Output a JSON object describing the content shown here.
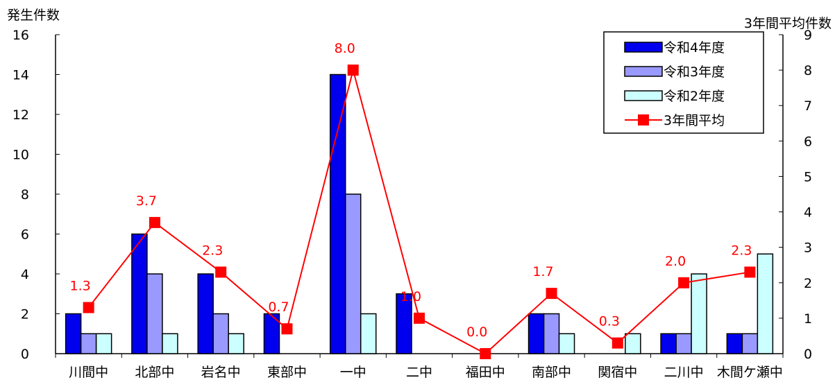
{
  "chart_data": {
    "type": "bar",
    "categories": [
      "川間中",
      "北部中",
      "岩名中",
      "東部中",
      "一中",
      "二中",
      "福田中",
      "南部中",
      "関宿中",
      "二川中",
      "木間ケ瀬中"
    ],
    "series": [
      {
        "name": "令和4年度",
        "type": "bar",
        "axis": "left",
        "color": "#0000ee",
        "values": [
          2,
          6,
          4,
          2,
          14,
          3,
          0,
          2,
          0,
          1,
          1
        ]
      },
      {
        "name": "令和3年度",
        "type": "bar",
        "axis": "left",
        "color": "#9999ff",
        "values": [
          1,
          4,
          2,
          0,
          8,
          0,
          0,
          2,
          0,
          1,
          1
        ]
      },
      {
        "name": "令和2年度",
        "type": "bar",
        "axis": "left",
        "color": "#ccffff",
        "values": [
          1,
          1,
          1,
          0,
          2,
          0,
          0,
          1,
          1,
          4,
          5
        ]
      },
      {
        "name": "3年間平均",
        "type": "line",
        "axis": "right",
        "color": "#ff0000",
        "values": [
          1.3,
          3.7,
          2.3,
          0.7,
          8.0,
          1.0,
          0.0,
          1.7,
          0.3,
          2.0,
          2.3
        ],
        "labels": [
          "1.3",
          "3.7",
          "2.3",
          "0.7",
          "8.0",
          "1.0",
          "0.0",
          "1.7",
          "0.3",
          "2.0",
          "2.3"
        ]
      }
    ],
    "ylabel": "発生件数",
    "y2label": "3年間平均件数",
    "ylim": [
      0,
      16
    ],
    "yticks": [
      "0",
      "2",
      "4",
      "6",
      "8",
      "10",
      "12",
      "14",
      "16"
    ],
    "y2lim": [
      0,
      9
    ],
    "y2ticks": [
      "0",
      "1",
      "2",
      "3",
      "4",
      "5",
      "6",
      "7",
      "8",
      "9"
    ],
    "grid": false,
    "legend_position": "top-right"
  }
}
